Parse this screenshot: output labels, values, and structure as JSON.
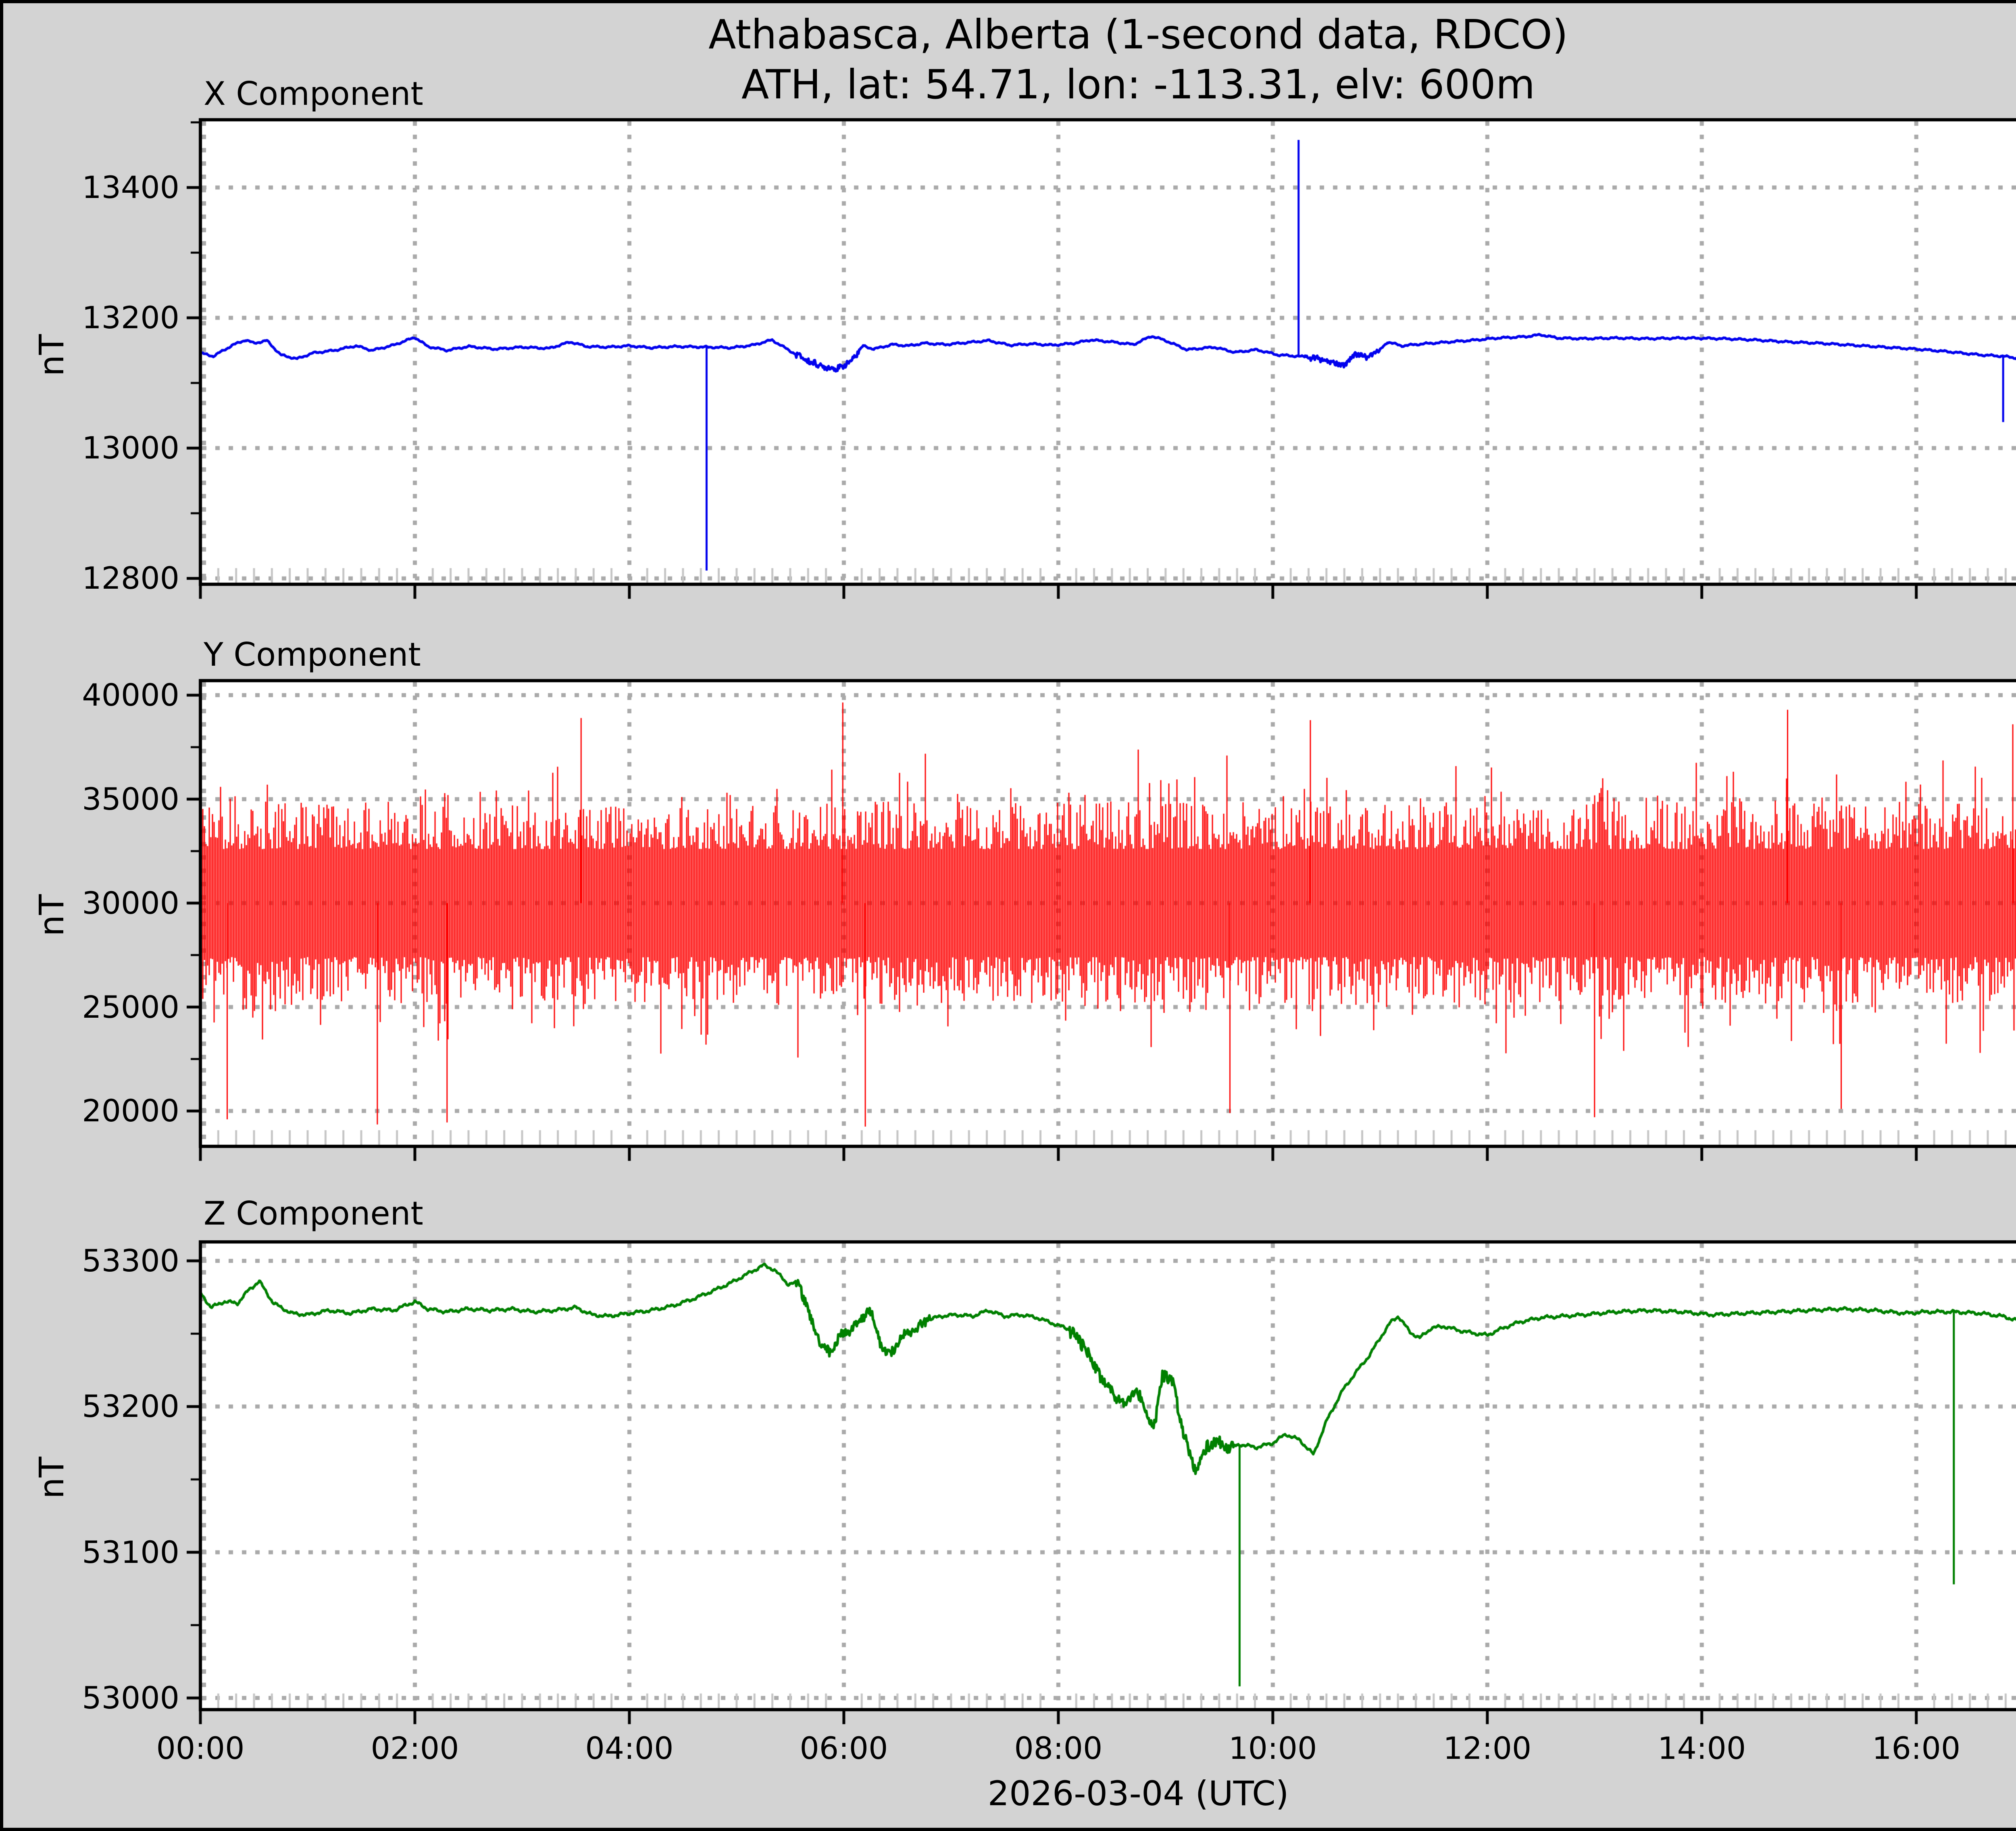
{
  "header": {
    "title_line1": "Athabasca, Alberta (1-second data, RDCO)",
    "title_line2": "ATH, lat: 54.71, lon: -113.31, elv: 600m"
  },
  "colors": {
    "figure_bg": "#d3d3d3",
    "plot_bg": "#ffffff",
    "grid": "#aaaaaa",
    "minor_tick_inside": "#c6c6c6",
    "spine": "#000000",
    "text": "#000000",
    "x_line": "#0202ee",
    "y_line": "#fe0000",
    "z_line": "#008000"
  },
  "xaxis": {
    "label": "2026-03-04 (UTC)",
    "lim_hours": [
      0,
      17.49
    ],
    "major_ticks": [
      {
        "hour": 0,
        "label": "00:00"
      },
      {
        "hour": 2,
        "label": "02:00"
      },
      {
        "hour": 4,
        "label": "04:00"
      },
      {
        "hour": 6,
        "label": "06:00"
      },
      {
        "hour": 8,
        "label": "08:00"
      },
      {
        "hour": 10,
        "label": "10:00"
      },
      {
        "hour": 12,
        "label": "12:00"
      },
      {
        "hour": 14,
        "label": "14:00"
      },
      {
        "hour": 16,
        "label": "16:00"
      }
    ],
    "minor_step_minutes": 10
  },
  "chart_data": [
    {
      "type": "line",
      "title": "X Component",
      "ylabel": "nT",
      "color": "#0202ee",
      "ylim": [
        12791,
        13504
      ],
      "yticks": [
        13400,
        13200,
        13000,
        12800
      ],
      "ytick_major_step": 200,
      "ytick_minor_step": 100,
      "jitter": 1.8,
      "rough_intervals": [
        [
          5.55,
          6.15,
          4.5
        ],
        [
          10.3,
          11.0,
          3.5
        ]
      ],
      "spikes": [
        [
          4.72,
          12812
        ],
        [
          10.24,
          13473
        ],
        [
          16.81,
          13040
        ]
      ],
      "keypoints": [
        [
          0,
          13146
        ],
        [
          0.12,
          13141
        ],
        [
          0.3,
          13158
        ],
        [
          0.42,
          13166
        ],
        [
          0.5,
          13161
        ],
        [
          0.62,
          13165
        ],
        [
          0.75,
          13143
        ],
        [
          0.9,
          13137
        ],
        [
          1.05,
          13146
        ],
        [
          1.25,
          13150
        ],
        [
          1.45,
          13157
        ],
        [
          1.6,
          13150
        ],
        [
          1.8,
          13158
        ],
        [
          2.0,
          13170
        ],
        [
          2.12,
          13156
        ],
        [
          2.3,
          13150
        ],
        [
          2.5,
          13156
        ],
        [
          2.75,
          13152
        ],
        [
          3.0,
          13155
        ],
        [
          3.25,
          13153
        ],
        [
          3.45,
          13163
        ],
        [
          3.6,
          13156
        ],
        [
          3.8,
          13155
        ],
        [
          4.0,
          13157
        ],
        [
          4.2,
          13154
        ],
        [
          4.45,
          13156
        ],
        [
          4.72,
          13155
        ],
        [
          4.95,
          13154
        ],
        [
          5.15,
          13158
        ],
        [
          5.33,
          13166
        ],
        [
          5.5,
          13149
        ],
        [
          5.65,
          13135
        ],
        [
          5.78,
          13126
        ],
        [
          5.92,
          13122
        ],
        [
          6.02,
          13127
        ],
        [
          6.1,
          13140
        ],
        [
          6.18,
          13157
        ],
        [
          6.28,
          13152
        ],
        [
          6.45,
          13159
        ],
        [
          6.6,
          13157
        ],
        [
          6.75,
          13161
        ],
        [
          6.95,
          13159
        ],
        [
          7.15,
          13162
        ],
        [
          7.35,
          13165
        ],
        [
          7.55,
          13158
        ],
        [
          7.75,
          13160
        ],
        [
          7.95,
          13158
        ],
        [
          8.15,
          13161
        ],
        [
          8.3,
          13166
        ],
        [
          8.5,
          13163
        ],
        [
          8.7,
          13159
        ],
        [
          8.87,
          13172
        ],
        [
          9.0,
          13165
        ],
        [
          9.2,
          13151
        ],
        [
          9.45,
          13155
        ],
        [
          9.65,
          13147
        ],
        [
          9.85,
          13151
        ],
        [
          10.05,
          13143
        ],
        [
          10.24,
          13141
        ],
        [
          10.4,
          13138
        ],
        [
          10.55,
          13131
        ],
        [
          10.67,
          13127
        ],
        [
          10.77,
          13146
        ],
        [
          10.87,
          13139
        ],
        [
          11.0,
          13151
        ],
        [
          11.07,
          13163
        ],
        [
          11.2,
          13157
        ],
        [
          11.4,
          13160
        ],
        [
          11.65,
          13163
        ],
        [
          11.9,
          13166
        ],
        [
          12.1,
          13169
        ],
        [
          12.35,
          13171
        ],
        [
          12.5,
          13174
        ],
        [
          12.65,
          13169
        ],
        [
          12.9,
          13168
        ],
        [
          13.2,
          13169
        ],
        [
          13.5,
          13168
        ],
        [
          13.85,
          13169
        ],
        [
          14.2,
          13168
        ],
        [
          14.5,
          13166
        ],
        [
          14.8,
          13163
        ],
        [
          15.1,
          13161
        ],
        [
          15.4,
          13158
        ],
        [
          15.7,
          13155
        ],
        [
          16.0,
          13152
        ],
        [
          16.3,
          13148
        ],
        [
          16.6,
          13143
        ],
        [
          16.81,
          13141
        ],
        [
          17.0,
          13137
        ],
        [
          17.15,
          13133
        ],
        [
          17.3,
          13135
        ],
        [
          17.45,
          13131
        ],
        [
          17.6,
          13133
        ],
        [
          17.65,
          13134
        ]
      ]
    },
    {
      "type": "noise",
      "title": "Y Component",
      "ylabel": "nT",
      "color": "#fe0000",
      "ylim": [
        18300,
        40700
      ],
      "yticks": [
        40000,
        35000,
        30000,
        25000,
        20000
      ],
      "ytick_major_step": 5000,
      "ytick_minor_step": 2500,
      "noise": {
        "mean": 30000,
        "core_min_halfwidth": 2600,
        "core_var_halfwidth": 2300,
        "spike_prob": 0.13,
        "spike_extra": 2800,
        "rare_prob": 0.01,
        "rare_extra": 2500,
        "value_min": 19250,
        "value_max": 39750,
        "seed": 987654321
      },
      "extremes_top": [
        [
          3.55,
          38900
        ],
        [
          5.99,
          39650
        ],
        [
          10.35,
          38800
        ],
        [
          14.8,
          39300
        ],
        [
          16.9,
          38600
        ]
      ],
      "extremes_bottom": [
        [
          0.25,
          19600
        ],
        [
          1.65,
          19350
        ],
        [
          2.3,
          19450
        ],
        [
          6.2,
          19250
        ],
        [
          9.6,
          19900
        ],
        [
          13.0,
          19700
        ],
        [
          15.3,
          20100
        ]
      ]
    },
    {
      "type": "line",
      "title": "Z Component",
      "ylabel": "nT",
      "color": "#008000",
      "ylim": [
        52992,
        53313
      ],
      "yticks": [
        53300,
        53200,
        53100,
        53000
      ],
      "ytick_major_step": 100,
      "ytick_minor_step": 50,
      "jitter": 1.4,
      "rough_intervals": [
        [
          5.55,
          6.8,
          3.0
        ],
        [
          8.1,
          9.65,
          4.0
        ]
      ],
      "spikes": [
        [
          9.69,
          53008
        ],
        [
          16.35,
          53078
        ]
      ],
      "keypoints": [
        [
          0,
          53278
        ],
        [
          0.1,
          53268
        ],
        [
          0.22,
          53272
        ],
        [
          0.35,
          53271
        ],
        [
          0.45,
          53280
        ],
        [
          0.55,
          53286
        ],
        [
          0.68,
          53271
        ],
        [
          0.85,
          53264
        ],
        [
          1.0,
          53263
        ],
        [
          1.2,
          53266
        ],
        [
          1.4,
          53264
        ],
        [
          1.6,
          53267
        ],
        [
          1.8,
          53266
        ],
        [
          2.0,
          53272
        ],
        [
          2.12,
          53267
        ],
        [
          2.3,
          53265
        ],
        [
          2.5,
          53267
        ],
        [
          2.7,
          53266
        ],
        [
          2.9,
          53267
        ],
        [
          3.1,
          53265
        ],
        [
          3.3,
          53266
        ],
        [
          3.5,
          53268
        ],
        [
          3.65,
          53263
        ],
        [
          3.8,
          53262
        ],
        [
          4.0,
          53264
        ],
        [
          4.2,
          53266
        ],
        [
          4.4,
          53269
        ],
        [
          4.6,
          53274
        ],
        [
          4.8,
          53280
        ],
        [
          4.95,
          53285
        ],
        [
          5.1,
          53291
        ],
        [
          5.25,
          53297
        ],
        [
          5.35,
          53294
        ],
        [
          5.48,
          53284
        ],
        [
          5.58,
          53285
        ],
        [
          5.68,
          53262
        ],
        [
          5.78,
          53244
        ],
        [
          5.87,
          53237
        ],
        [
          5.97,
          53249
        ],
        [
          6.07,
          53253
        ],
        [
          6.17,
          53261
        ],
        [
          6.25,
          53266
        ],
        [
          6.35,
          53241
        ],
        [
          6.43,
          53235
        ],
        [
          6.55,
          53249
        ],
        [
          6.67,
          53253
        ],
        [
          6.77,
          53259
        ],
        [
          6.9,
          53262
        ],
        [
          7.05,
          53263
        ],
        [
          7.2,
          53262
        ],
        [
          7.35,
          53266
        ],
        [
          7.5,
          53262
        ],
        [
          7.65,
          53263
        ],
        [
          7.8,
          53261
        ],
        [
          7.95,
          53257
        ],
        [
          8.1,
          53253
        ],
        [
          8.25,
          53240
        ],
        [
          8.4,
          53220
        ],
        [
          8.52,
          53209
        ],
        [
          8.62,
          53202
        ],
        [
          8.72,
          53212
        ],
        [
          8.82,
          53196
        ],
        [
          8.9,
          53186
        ],
        [
          8.97,
          53222
        ],
        [
          9.07,
          53216
        ],
        [
          9.17,
          53181
        ],
        [
          9.28,
          53157
        ],
        [
          9.38,
          53172
        ],
        [
          9.48,
          53177
        ],
        [
          9.58,
          53171
        ],
        [
          9.69,
          53174
        ],
        [
          9.85,
          53172
        ],
        [
          10.0,
          53175
        ],
        [
          10.12,
          53181
        ],
        [
          10.25,
          53177
        ],
        [
          10.38,
          53167
        ],
        [
          10.5,
          53190
        ],
        [
          10.65,
          53211
        ],
        [
          10.78,
          53224
        ],
        [
          10.9,
          53235
        ],
        [
          11.0,
          53247
        ],
        [
          11.1,
          53258
        ],
        [
          11.17,
          53262
        ],
        [
          11.28,
          53251
        ],
        [
          11.37,
          53247
        ],
        [
          11.48,
          53254
        ],
        [
          11.6,
          53255
        ],
        [
          11.75,
          53252
        ],
        [
          11.9,
          53250
        ],
        [
          12.0,
          53249
        ],
        [
          12.15,
          53254
        ],
        [
          12.3,
          53258
        ],
        [
          12.5,
          53261
        ],
        [
          12.7,
          53262
        ],
        [
          12.9,
          53263
        ],
        [
          13.2,
          53265
        ],
        [
          13.5,
          53266
        ],
        [
          13.8,
          53265
        ],
        [
          14.1,
          53263
        ],
        [
          14.4,
          53264
        ],
        [
          14.7,
          53265
        ],
        [
          15.0,
          53266
        ],
        [
          15.3,
          53267
        ],
        [
          15.6,
          53266
        ],
        [
          15.9,
          53264
        ],
        [
          16.1,
          53265
        ],
        [
          16.35,
          53265
        ],
        [
          16.6,
          53264
        ],
        [
          16.8,
          53262
        ],
        [
          17.0,
          53258
        ],
        [
          17.15,
          53256
        ],
        [
          17.3,
          53255
        ],
        [
          17.45,
          53258
        ],
        [
          17.6,
          53261
        ],
        [
          17.65,
          53262
        ]
      ]
    }
  ]
}
